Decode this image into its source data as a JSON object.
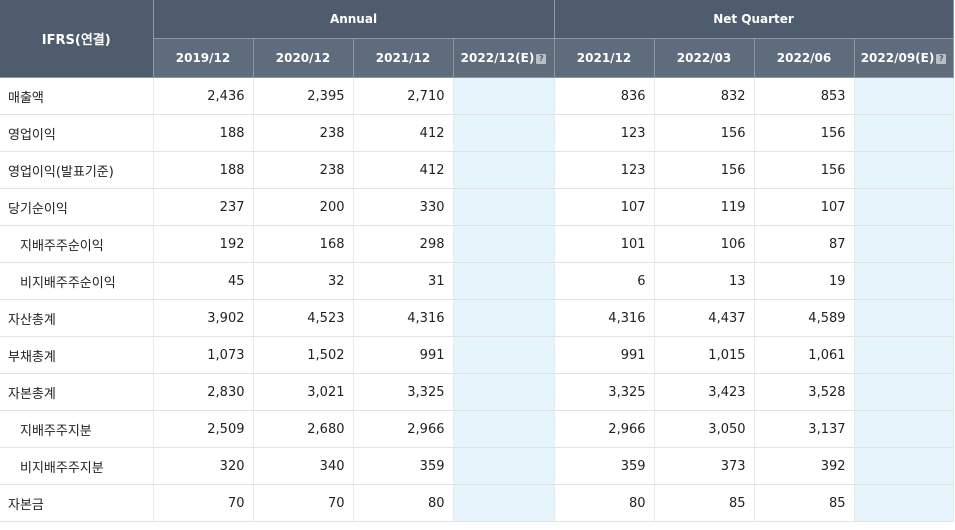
{
  "header": {
    "corner": "IFRS(연결)",
    "annual_label": "Annual",
    "quarter_label": "Net Quarter",
    "annual_periods": [
      "2019/12",
      "2020/12",
      "2021/12",
      "2022/12(E)"
    ],
    "quarter_periods": [
      "2021/12",
      "2022/03",
      "2022/06",
      "2022/09(E)"
    ],
    "help_icon": "question-icon"
  },
  "rows": [
    {
      "label": "매출액",
      "sub": false,
      "annual": [
        "2,436",
        "2,395",
        "2,710",
        ""
      ],
      "quarter": [
        "836",
        "832",
        "853",
        ""
      ]
    },
    {
      "label": "영업이익",
      "sub": false,
      "annual": [
        "188",
        "238",
        "412",
        ""
      ],
      "quarter": [
        "123",
        "156",
        "156",
        ""
      ]
    },
    {
      "label": "영업이익(발표기준)",
      "sub": false,
      "annual": [
        "188",
        "238",
        "412",
        ""
      ],
      "quarter": [
        "123",
        "156",
        "156",
        ""
      ]
    },
    {
      "label": "당기순이익",
      "sub": false,
      "annual": [
        "237",
        "200",
        "330",
        ""
      ],
      "quarter": [
        "107",
        "119",
        "107",
        ""
      ]
    },
    {
      "label": "지배주주순이익",
      "sub": true,
      "annual": [
        "192",
        "168",
        "298",
        ""
      ],
      "quarter": [
        "101",
        "106",
        "87",
        ""
      ]
    },
    {
      "label": "비지배주주순이익",
      "sub": true,
      "annual": [
        "45",
        "32",
        "31",
        ""
      ],
      "quarter": [
        "6",
        "13",
        "19",
        ""
      ]
    },
    {
      "label": "자산총계",
      "sub": false,
      "annual": [
        "3,902",
        "4,523",
        "4,316",
        ""
      ],
      "quarter": [
        "4,316",
        "4,437",
        "4,589",
        ""
      ]
    },
    {
      "label": "부채총계",
      "sub": false,
      "annual": [
        "1,073",
        "1,502",
        "991",
        ""
      ],
      "quarter": [
        "991",
        "1,015",
        "1,061",
        ""
      ]
    },
    {
      "label": "자본총계",
      "sub": false,
      "annual": [
        "2,830",
        "3,021",
        "3,325",
        ""
      ],
      "quarter": [
        "3,325",
        "3,423",
        "3,528",
        ""
      ]
    },
    {
      "label": "지배주주지분",
      "sub": true,
      "annual": [
        "2,509",
        "2,680",
        "2,966",
        ""
      ],
      "quarter": [
        "2,966",
        "3,050",
        "3,137",
        ""
      ]
    },
    {
      "label": "비지배주주지분",
      "sub": true,
      "annual": [
        "320",
        "340",
        "359",
        ""
      ],
      "quarter": [
        "359",
        "373",
        "392",
        ""
      ]
    },
    {
      "label": "자본금",
      "sub": false,
      "annual": [
        "70",
        "70",
        "80",
        ""
      ],
      "quarter": [
        "80",
        "85",
        "85",
        ""
      ]
    }
  ]
}
